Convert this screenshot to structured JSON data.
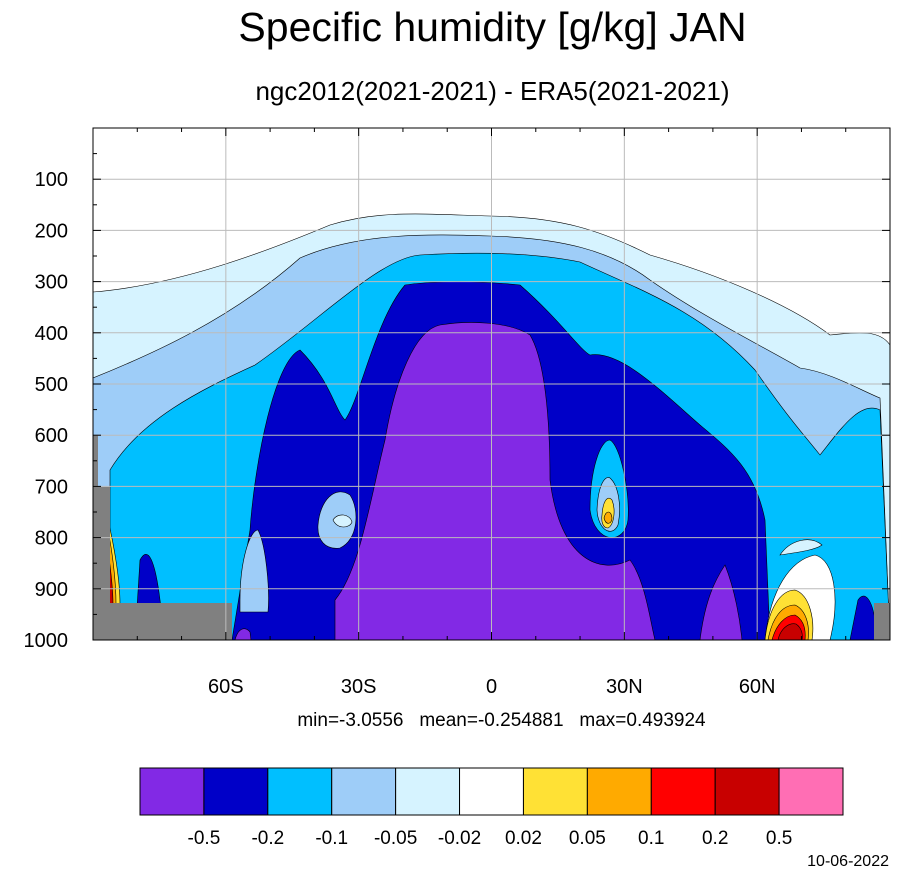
{
  "title": "Specific humidity [g/kg] JAN",
  "subtitle": "ngc2012(2021-2021) - ERA5(2021-2021)",
  "stats": {
    "min_label": "min=-3.0556",
    "mean_label": "mean=-0.254881",
    "max_label": "max=0.493924"
  },
  "date": "10-06-2022",
  "chart_data": {
    "type": "filled-contour",
    "x_ticks": [
      "60S",
      "30S",
      "0",
      "30N",
      "60N"
    ],
    "y_ticks": [
      "100",
      "200",
      "300",
      "400",
      "500",
      "600",
      "700",
      "800",
      "900",
      "1000"
    ],
    "xlim": [
      -90,
      90
    ],
    "ylim": [
      1000,
      0
    ],
    "grid": true,
    "colorbar": {
      "labels": [
        "-0.5",
        "-0.2",
        "-0.1",
        "-0.05",
        "-0.02",
        "0.02",
        "0.05",
        "0.1",
        "0.2",
        "0.5"
      ],
      "colors": [
        "#8229e5",
        "#0000c8",
        "#00bfff",
        "#9ecdf8",
        "#d6f3ff",
        "#ffffff",
        "#ffe135",
        "#ffaa00",
        "#ff0000",
        "#c80000",
        "#ff6eb4"
      ]
    },
    "missing_color": "#808080"
  }
}
